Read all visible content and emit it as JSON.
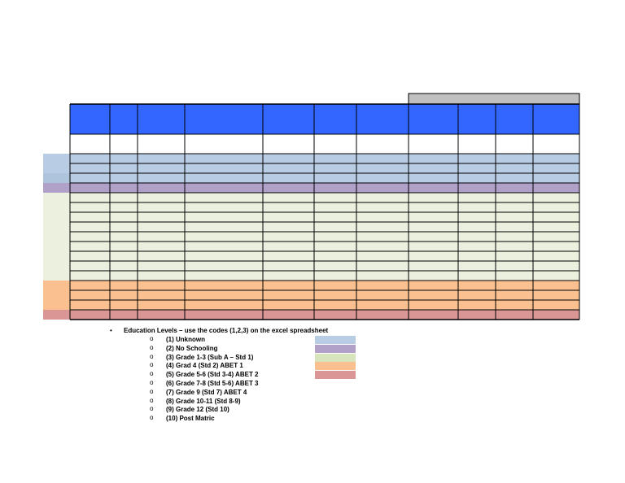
{
  "colors": {
    "header_blue": "#3366ff",
    "top_gray": "#c0c0c0",
    "blue": "#b8cce4",
    "purple": "#b1a0c7",
    "green": "#ebf1de",
    "orange": "#fac090",
    "red": "#da9694",
    "legend_green": "#d8e4bc",
    "grid_line": "#000000"
  },
  "row_bands": [
    "blue",
    "blue",
    "blue",
    "purple",
    "green",
    "green",
    "green",
    "green",
    "green",
    "green",
    "green",
    "green",
    "green",
    "orange",
    "orange",
    "orange",
    "red"
  ],
  "legend": {
    "heading": "Education Levels – use the codes (1,2,3) on the excel spreadsheet",
    "items": [
      {
        "label": "(1) Unknown",
        "color": "#b8cce4"
      },
      {
        "label": "(2) No Schooling",
        "color": "#b1a0c7"
      },
      {
        "label": "(3) Grade 1-3 (Sub A – Std 1)",
        "color": "#d8e4bc"
      },
      {
        "label": "(4) Grad 4 (Std 2) ABET 1",
        "color": "#fac090"
      },
      {
        "label": "(5) Grade 5-6 (Std 3-4) ABET 2",
        "color": "#da9694"
      },
      {
        "label": "(6) Grade 7-8 (Std 5-6) ABET 3",
        "color": ""
      },
      {
        "label": "(7) Grade 9 (Std 7) ABET 4",
        "color": ""
      },
      {
        "label": "(8) Grade 10-11 (Std 8-9)",
        "color": ""
      },
      {
        "label": "(9) Grade 12 (Std 10)",
        "color": ""
      },
      {
        "label": "(10) Post Matric",
        "color": ""
      }
    ]
  }
}
